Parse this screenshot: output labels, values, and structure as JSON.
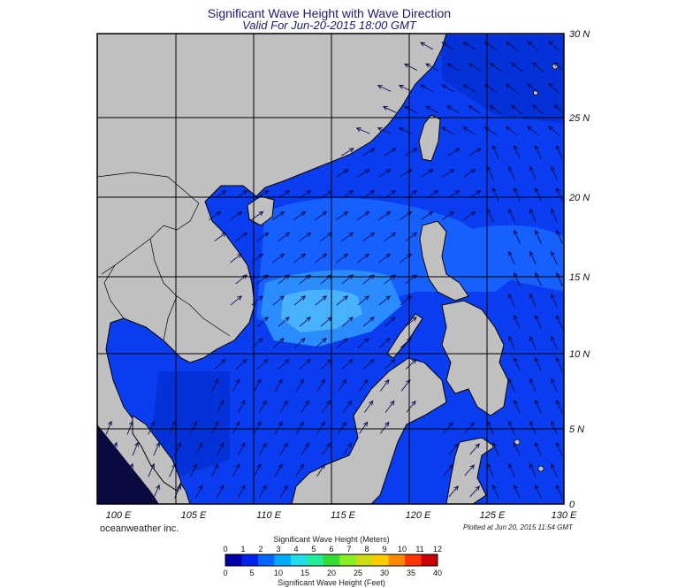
{
  "title": "Significant Wave Height with Wave Direction",
  "subtitle": "Valid For Jun-20-2015 18:00 GMT",
  "credit": "oceanweather inc.",
  "plotted": "Plotted at Jun 20, 2015 11:54 GMT",
  "lat_labels": [
    "30 N",
    "25 N",
    "20 N",
    "15 N",
    "10 N",
    "5 N",
    "0"
  ],
  "lon_labels": [
    "100 E",
    "105 E",
    "110 E",
    "115 E",
    "120 E",
    "125 E",
    "130 E"
  ],
  "colorbar": {
    "meters_title": "Significant Wave Height (Meters)",
    "feet_title": "Significant Wave Height (Feet)",
    "meters_ticks": [
      "0",
      "1",
      "2",
      "3",
      "4",
      "5",
      "6",
      "7",
      "8",
      "9",
      "10",
      "11",
      "12"
    ],
    "feet_ticks": [
      "0",
      "5",
      "10",
      "15",
      "20",
      "25",
      "30",
      "35",
      "40"
    ],
    "colors": [
      "#0000aa",
      "#0022ee",
      "#0066ff",
      "#00aaff",
      "#22ddee",
      "#22ee99",
      "#33dd33",
      "#88ee22",
      "#ccdd11",
      "#ffcc00",
      "#ff8800",
      "#ff3300",
      "#cc0000"
    ]
  },
  "colors": {
    "land": "#c0c0c0",
    "ocean": "#0a3df0",
    "ocean_light": "#1a7bff",
    "ocean_cyan": "#3fa8ff",
    "ocean_dark": "#0018b0",
    "grid": "#000000",
    "arrow": "#0b0b55"
  }
}
